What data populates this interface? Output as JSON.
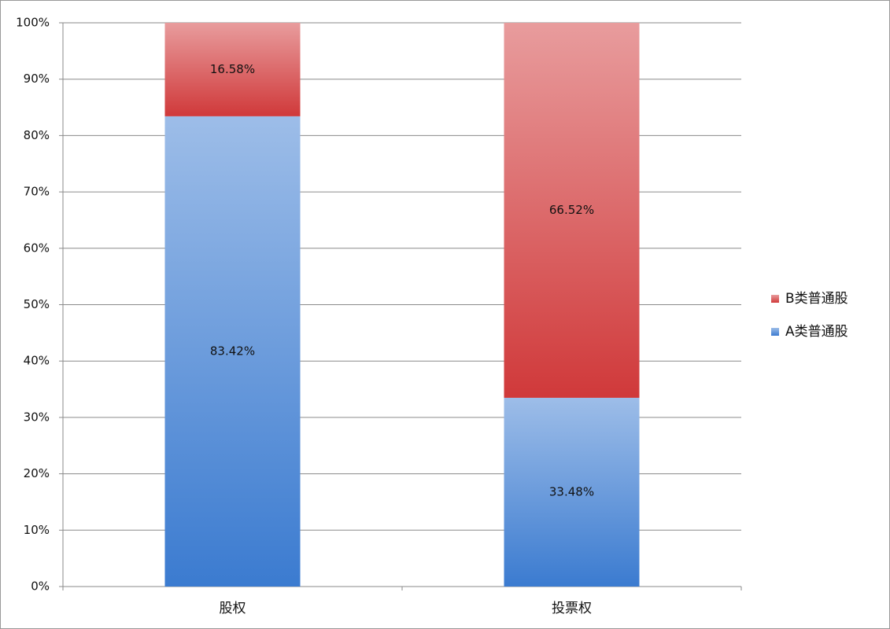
{
  "chart_data": {
    "type": "stacked-bar",
    "categories": [
      "股权",
      "投票权"
    ],
    "series": [
      {
        "name": "A类普通股",
        "color": "#3b7bd0",
        "values": [
          83.42,
          33.48
        ],
        "value_labels": [
          "83.42%",
          "33.48%"
        ]
      },
      {
        "name": "B类普通股",
        "color": "#d0393a",
        "values": [
          16.58,
          66.52
        ],
        "value_labels": [
          "16.58%",
          "66.52%"
        ]
      }
    ],
    "ylim": [
      0,
      100
    ],
    "yticks": [
      {
        "value": 0,
        "label": "0%"
      },
      {
        "value": 10,
        "label": "10%"
      },
      {
        "value": 20,
        "label": "20%"
      },
      {
        "value": 30,
        "label": "30%"
      },
      {
        "value": 40,
        "label": "40%"
      },
      {
        "value": 50,
        "label": "50%"
      },
      {
        "value": 60,
        "label": "60%"
      },
      {
        "value": 70,
        "label": "70%"
      },
      {
        "value": 80,
        "label": "80%"
      },
      {
        "value": 90,
        "label": "90%"
      },
      {
        "value": 100,
        "label": "100%"
      }
    ],
    "grid": true,
    "legend": "right"
  }
}
